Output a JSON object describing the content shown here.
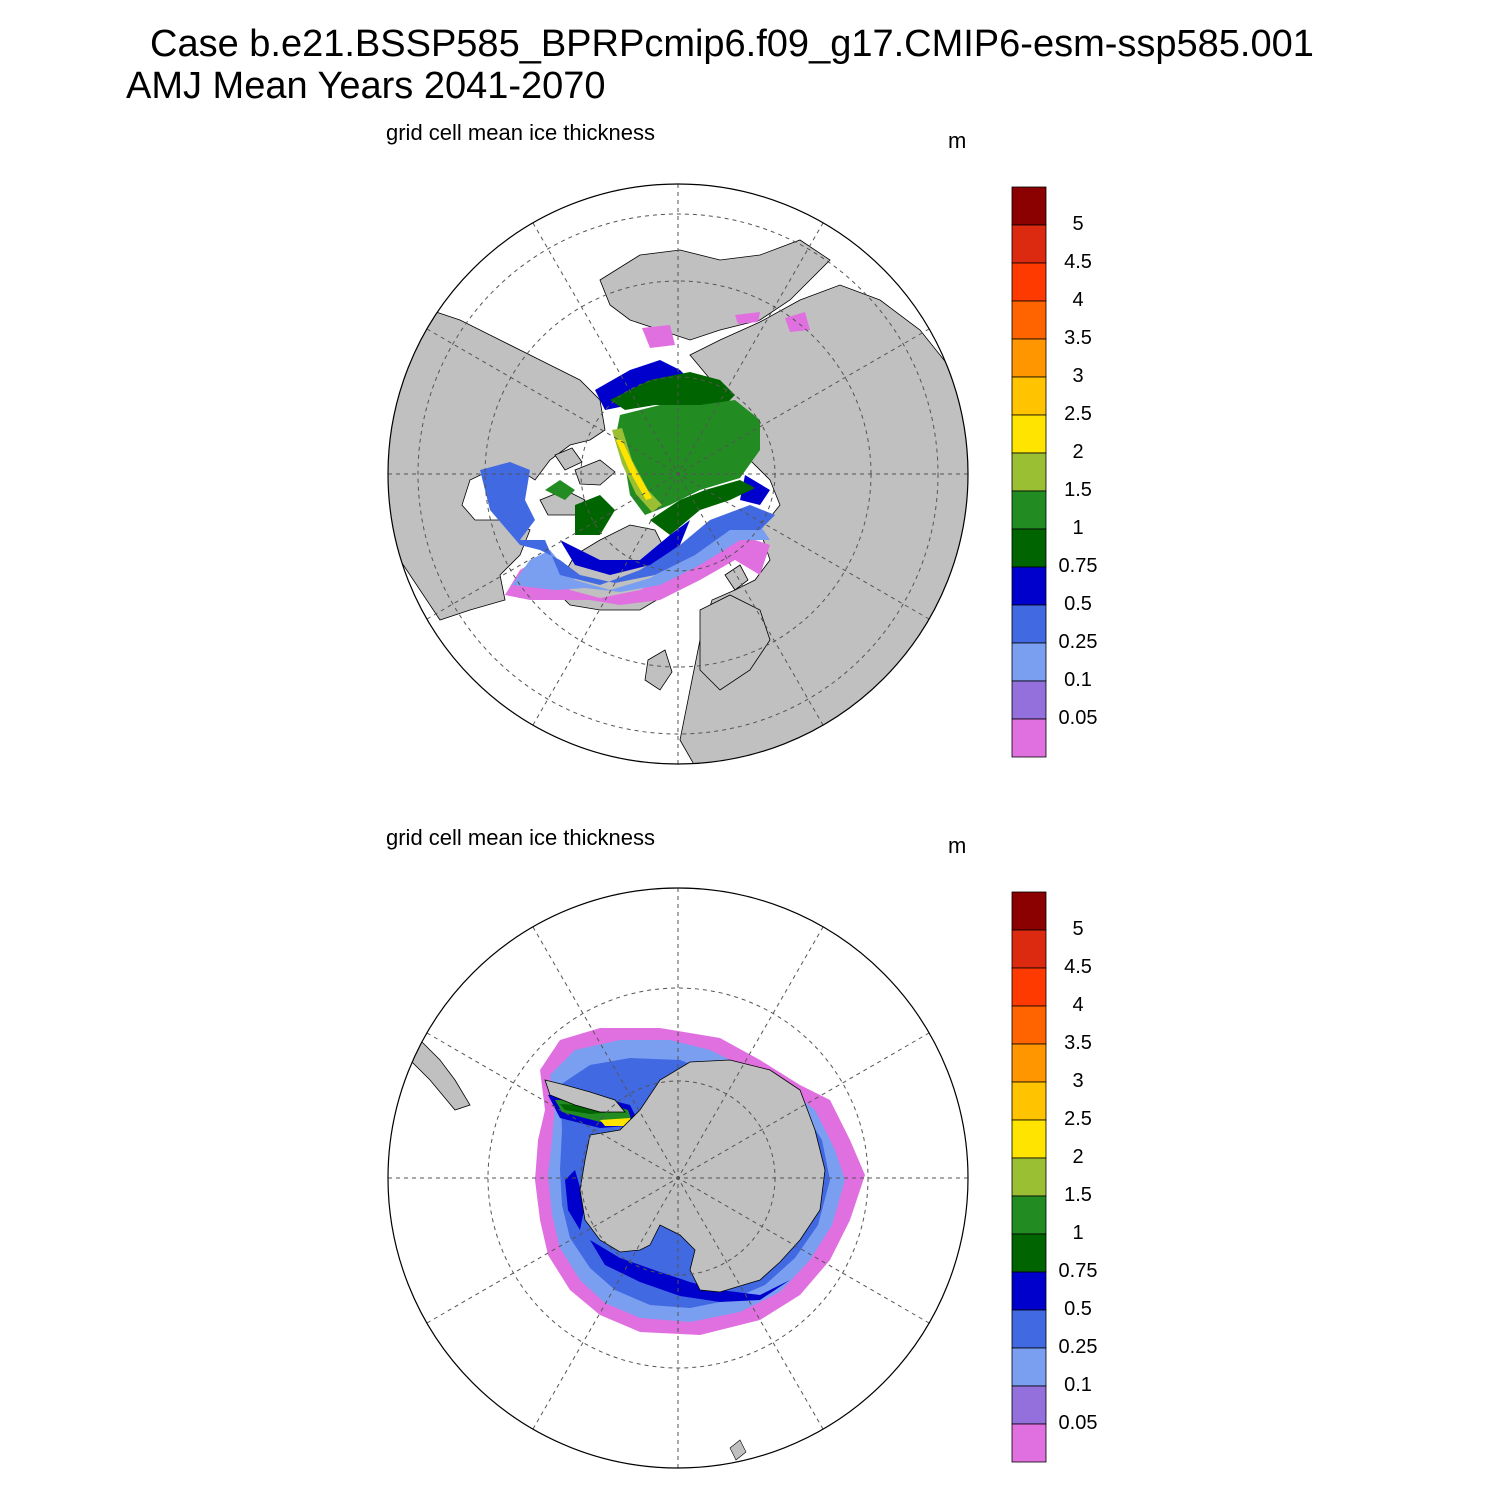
{
  "title": {
    "line1": "Case b.e21.BSSP585_BPRPcmip6.f09_g17.CMIP6-esm-ssp585.001",
    "line2": "AMJ Mean   Years 2041-2070"
  },
  "panels": [
    {
      "id": "north",
      "title": "grid cell mean ice thickness",
      "units": "m",
      "hemisphere": "Arctic"
    },
    {
      "id": "south",
      "title": "grid cell mean ice thickness",
      "units": "m",
      "hemisphere": "Antarctic"
    }
  ],
  "colorbar": {
    "labels": [
      "5",
      "4.5",
      "4",
      "3.5",
      "3",
      "2.5",
      "2",
      "1.5",
      "1",
      "0.75",
      "0.5",
      "0.25",
      "0.1",
      "0.05"
    ],
    "colors": [
      "#8b0000",
      "#dc2a10",
      "#ff3a00",
      "#ff6400",
      "#ff9600",
      "#ffc300",
      "#ffe400",
      "#9abf33",
      "#228b22",
      "#006400",
      "#0000cd",
      "#4169e1",
      "#7b9ff0",
      "#9370db",
      "#e070e0"
    ]
  },
  "colors": {
    "land": "#c0c0c0",
    "ocean": "#ffffff",
    "grid": "#555555"
  }
}
